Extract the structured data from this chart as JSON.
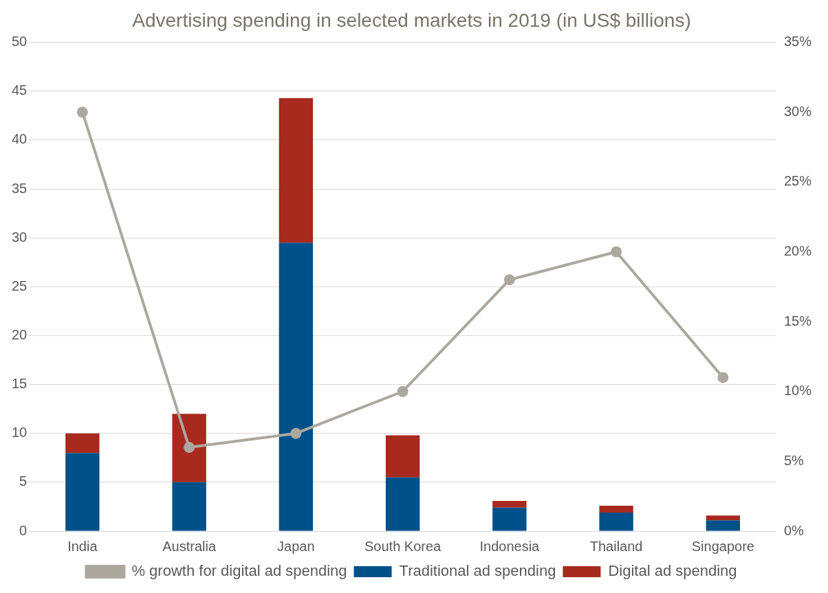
{
  "chart_data": {
    "type": "bar",
    "title": "Advertising spending in selected markets in 2019 (in US$ billions)",
    "categories": [
      "India",
      "Australia",
      "Japan",
      "South Korea",
      "Indonesia",
      "Thailand",
      "Singapore"
    ],
    "stacked": true,
    "series": [
      {
        "name": "Traditional ad spending",
        "color": "#00508a",
        "values": [
          8,
          5,
          29.5,
          5.5,
          2.4,
          1.9,
          1.1
        ]
      },
      {
        "name": "Digital ad spending",
        "color": "#a8291e",
        "values": [
          2,
          7,
          14.8,
          4.3,
          0.7,
          0.7,
          0.5
        ]
      },
      {
        "name": "% growth for digital ad spending",
        "type": "line",
        "axis": "y2",
        "color": "#aca89e",
        "values": [
          30,
          6,
          7,
          10,
          18,
          20,
          11
        ]
      }
    ],
    "ylim": [
      0,
      50
    ],
    "yticks": [
      0,
      5,
      10,
      15,
      20,
      25,
      30,
      35,
      40,
      45,
      50
    ],
    "y2lim": [
      0,
      35
    ],
    "y2ticks": [
      {
        "value": 0,
        "label": "0%"
      },
      {
        "value": 5,
        "label": "5%"
      },
      {
        "value": 10,
        "label": "10%"
      },
      {
        "value": 15,
        "label": "15%"
      },
      {
        "value": 20,
        "label": "20%"
      },
      {
        "value": 25,
        "label": "25%"
      },
      {
        "value": 30,
        "label": "30%"
      },
      {
        "value": 35,
        "label": "35%"
      }
    ],
    "grid": "y",
    "legend": "bottom",
    "marker": "circle",
    "line_style": "solid"
  }
}
